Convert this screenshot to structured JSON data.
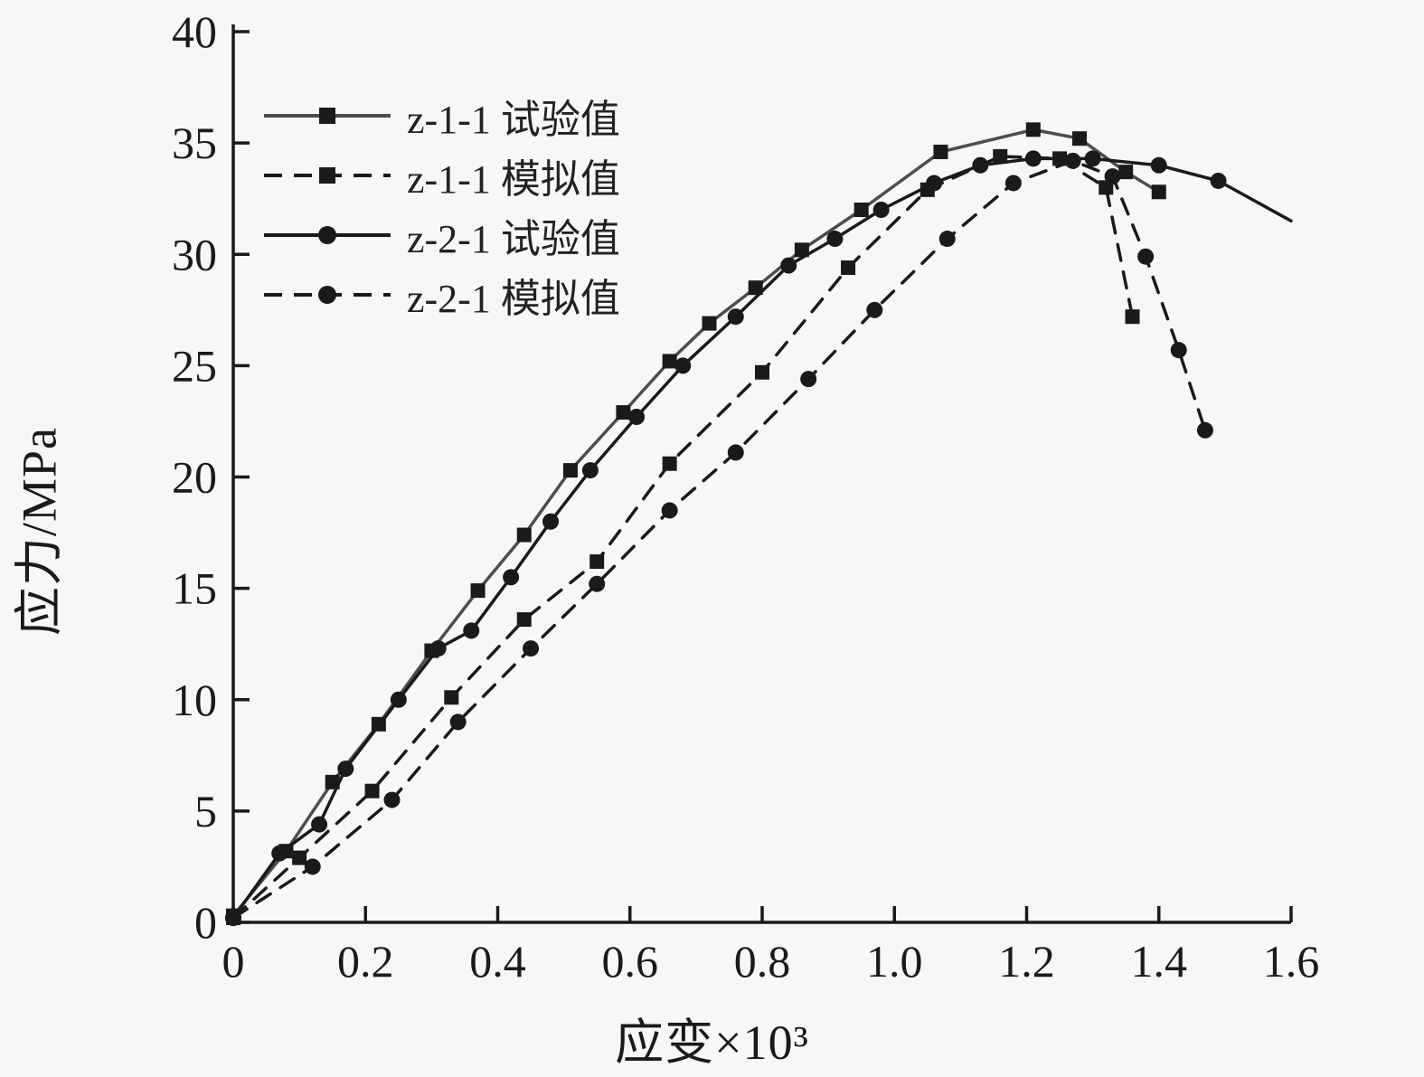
{
  "figure": {
    "background": "#f7f7f7",
    "axis_color": "#1a1a1a"
  },
  "chart_data": {
    "type": "line",
    "title": "",
    "xlabel": "应变×10³",
    "ylabel": "应力/MPa",
    "xlim": [
      0,
      1.6
    ],
    "ylim": [
      0,
      40
    ],
    "grid": false,
    "legend_position": "upper-left-inside",
    "xtick_values": [
      0,
      0.2,
      0.4,
      0.6,
      0.8,
      1.0,
      1.2,
      1.4,
      1.6
    ],
    "xtick_labels": [
      "0",
      "0.2",
      "0.4",
      "0.6",
      "0.8",
      "1.0",
      "1.2",
      "1.4",
      "1.6"
    ],
    "ytick_values": [
      0,
      5,
      10,
      15,
      20,
      25,
      30,
      35,
      40
    ],
    "ytick_labels": [
      "0",
      "5",
      "10",
      "15",
      "20",
      "25",
      "30",
      "35",
      "40"
    ],
    "series": [
      {
        "name": "z-1-1 试验值",
        "line": "solid",
        "marker": "square",
        "color": "#4d4d4d",
        "marker_color": "#1a1a1a",
        "marker_last": true,
        "x": [
          0,
          0.08,
          0.15,
          0.22,
          0.3,
          0.37,
          0.44,
          0.51,
          0.59,
          0.66,
          0.72,
          0.79,
          0.86,
          0.95,
          1.07,
          1.21,
          1.28,
          1.35,
          1.4
        ],
        "y": [
          0.3,
          3.2,
          6.3,
          8.9,
          12.2,
          14.9,
          17.4,
          20.3,
          22.9,
          25.2,
          26.9,
          28.5,
          30.2,
          32.0,
          34.6,
          35.6,
          35.2,
          33.7,
          32.8
        ]
      },
      {
        "name": "z-1-1 模拟值",
        "line": "dashed",
        "marker": "square",
        "color": "#1a1a1a",
        "marker_color": "#1a1a1a",
        "marker_last": true,
        "x": [
          0,
          0.1,
          0.21,
          0.33,
          0.44,
          0.55,
          0.66,
          0.8,
          0.93,
          1.05,
          1.16,
          1.25,
          1.32,
          1.36
        ],
        "y": [
          0.2,
          2.9,
          5.9,
          10.1,
          13.6,
          16.2,
          20.6,
          24.7,
          29.4,
          32.9,
          34.4,
          34.3,
          33.0,
          27.2
        ]
      },
      {
        "name": "z-2-1 试验值",
        "line": "solid",
        "marker": "circle",
        "color": "#1a1a1a",
        "marker_color": "#1a1a1a",
        "marker_last": false,
        "x": [
          0,
          0.07,
          0.13,
          0.17,
          0.25,
          0.31,
          0.36,
          0.42,
          0.48,
          0.54,
          0.61,
          0.68,
          0.76,
          0.84,
          0.91,
          0.98,
          1.06,
          1.13,
          1.21,
          1.3,
          1.4,
          1.49,
          1.6
        ],
        "y": [
          0.2,
          3.1,
          4.4,
          6.9,
          10.0,
          12.3,
          13.1,
          15.5,
          18.0,
          20.3,
          22.7,
          25.0,
          27.2,
          29.5,
          30.7,
          32.0,
          33.2,
          34.0,
          34.3,
          34.3,
          34.0,
          33.3,
          31.5
        ]
      },
      {
        "name": "z-2-1 模拟值",
        "line": "dashed",
        "marker": "circle",
        "color": "#1a1a1a",
        "marker_color": "#1a1a1a",
        "marker_last": true,
        "x": [
          0,
          0.12,
          0.24,
          0.34,
          0.45,
          0.55,
          0.66,
          0.76,
          0.87,
          0.97,
          1.08,
          1.18,
          1.27,
          1.33,
          1.38,
          1.43,
          1.47
        ],
        "y": [
          0.2,
          2.5,
          5.5,
          9.0,
          12.3,
          15.2,
          18.5,
          21.1,
          24.4,
          27.5,
          30.7,
          33.2,
          34.2,
          33.5,
          29.9,
          25.7,
          22.1
        ]
      }
    ]
  }
}
